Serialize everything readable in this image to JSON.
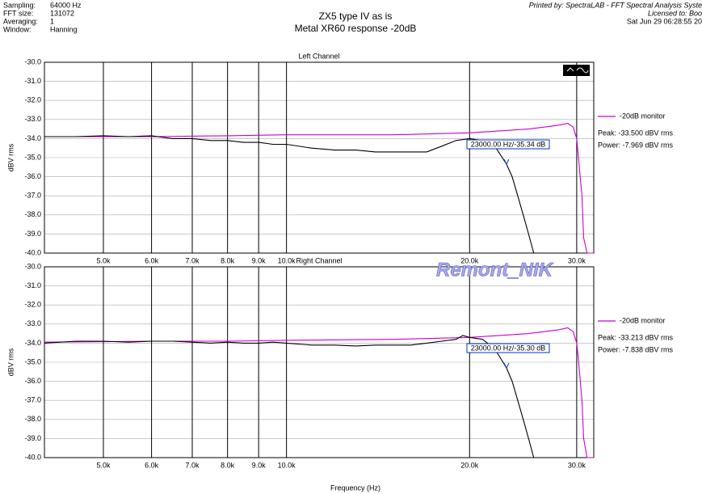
{
  "header": {
    "settings": [
      [
        "Sampling:",
        "64000 Hz"
      ],
      [
        "FFT size:",
        "131072"
      ],
      [
        "Averaging:",
        "1"
      ],
      [
        "Window:",
        "Hanning"
      ]
    ],
    "title_lines": [
      "ZX5 type IV as is",
      "Metal XR60 response -20dB"
    ],
    "printed_by": "Printed by: SpectraLAB - FFT Spectral Analysis Syste",
    "licensed": "Licensed to: Boo",
    "date": "Sat Jun 29 06:28:55 20",
    "watermark": "Remont_NIK",
    "xlabel": "Frequency (Hz)"
  },
  "chart_data": [
    {
      "type": "line",
      "title": "Left Channel",
      "ylabel": "dBV rms",
      "xscale": "log",
      "xlim": [
        4000,
        32000
      ],
      "ylim": [
        -40,
        -30
      ],
      "grid": true,
      "xticks": [
        {
          "value": 5000,
          "label": "5.0k"
        },
        {
          "value": 6000,
          "label": "6.0k"
        },
        {
          "value": 7000,
          "label": "7.0k"
        },
        {
          "value": 8000,
          "label": "8.0k"
        },
        {
          "value": 9000,
          "label": "9.0k"
        },
        {
          "value": 10000,
          "label": "10.0k"
        },
        {
          "value": 20000,
          "label": "20.0k"
        },
        {
          "value": 30000,
          "label": "30.0k"
        }
      ],
      "yticks": [
        {
          "value": -30,
          "label": "-30.0"
        },
        {
          "value": -31,
          "label": "-31.0"
        },
        {
          "value": -32,
          "label": "-32.0"
        },
        {
          "value": -33,
          "label": "-33.0"
        },
        {
          "value": -34,
          "label": "-34.0"
        },
        {
          "value": -35,
          "label": "-35.0"
        },
        {
          "value": -36,
          "label": "-36.0"
        },
        {
          "value": -37,
          "label": "-37.0"
        },
        {
          "value": -38,
          "label": "-38.0"
        },
        {
          "value": -39,
          "label": "-39.0"
        },
        {
          "value": -40,
          "label": "-40.0"
        }
      ],
      "series": [
        {
          "name": "-20dB monitor",
          "color": "#cc00cc",
          "x": [
            4000,
            6000,
            8000,
            10000,
            15000,
            20000,
            25000,
            28000,
            29000,
            29600,
            30000,
            30200,
            30600,
            30800,
            31200,
            32000
          ],
          "values": [
            -33.9,
            -33.9,
            -33.85,
            -33.8,
            -33.8,
            -33.7,
            -33.5,
            -33.3,
            -33.2,
            -33.4,
            -34.0,
            -35.0,
            -37.0,
            -39.2,
            -40.0,
            -40.0
          ]
        },
        {
          "name": null,
          "color": "#000000",
          "x": [
            4000,
            4500,
            5000,
            5500,
            6000,
            6500,
            7000,
            7500,
            8000,
            8500,
            9000,
            9500,
            10000,
            11000,
            12000,
            13000,
            14000,
            15000,
            16000,
            17000,
            18000,
            19000,
            20000,
            21000,
            22000,
            23000,
            23500,
            24000,
            24500,
            25000,
            25500,
            31000
          ],
          "values": [
            -33.9,
            -33.9,
            -33.85,
            -33.9,
            -33.85,
            -34.0,
            -34.0,
            -34.1,
            -34.1,
            -34.2,
            -34.2,
            -34.3,
            -34.3,
            -34.5,
            -34.6,
            -34.6,
            -34.7,
            -34.7,
            -34.7,
            -34.7,
            -34.4,
            -34.1,
            -34.0,
            -34.1,
            -34.4,
            -35.34,
            -36.0,
            -37.0,
            -38.0,
            -39.0,
            -40.0,
            -40.0
          ]
        }
      ],
      "cursor": {
        "x": 23000,
        "y": -35.34,
        "label": "23000.00 Hz/-35.34 dB"
      },
      "readouts": [
        "Peak: -33.500 dBV rms",
        "Power: -7.969 dBV rms"
      ]
    },
    {
      "type": "line",
      "title": "Right Channel",
      "ylabel": "dBV rms",
      "xscale": "log",
      "xlim": [
        4000,
        32000
      ],
      "ylim": [
        -40,
        -30
      ],
      "grid": true,
      "xticks": [
        {
          "value": 5000,
          "label": "5.0k"
        },
        {
          "value": 6000,
          "label": "6.0k"
        },
        {
          "value": 7000,
          "label": "7.0k"
        },
        {
          "value": 8000,
          "label": "8.0k"
        },
        {
          "value": 9000,
          "label": "9.0k"
        },
        {
          "value": 10000,
          "label": "10.0k"
        },
        {
          "value": 20000,
          "label": "20.0k"
        },
        {
          "value": 30000,
          "label": "30.0k"
        }
      ],
      "yticks": [
        {
          "value": -30,
          "label": "-30.0"
        },
        {
          "value": -31,
          "label": "-31.0"
        },
        {
          "value": -32,
          "label": "-32.0"
        },
        {
          "value": -33,
          "label": "-33.0"
        },
        {
          "value": -34,
          "label": "-34.0"
        },
        {
          "value": -35,
          "label": "-35.0"
        },
        {
          "value": -36,
          "label": "-36.0"
        },
        {
          "value": -37,
          "label": "-37.0"
        },
        {
          "value": -38,
          "label": "-38.0"
        },
        {
          "value": -39,
          "label": "-39.0"
        },
        {
          "value": -40,
          "label": "-40.0"
        }
      ],
      "series": [
        {
          "name": "-20dB monitor",
          "color": "#cc00cc",
          "x": [
            4000,
            6000,
            8000,
            10000,
            15000,
            20000,
            25000,
            28000,
            29000,
            29600,
            30000,
            30200,
            30600,
            30800,
            31200,
            32000
          ],
          "values": [
            -33.95,
            -33.9,
            -33.9,
            -33.85,
            -33.8,
            -33.7,
            -33.5,
            -33.3,
            -33.2,
            -33.4,
            -34.0,
            -34.9,
            -37.0,
            -39.0,
            -40.0,
            -40.0
          ]
        },
        {
          "name": null,
          "color": "#000000",
          "x": [
            4000,
            4500,
            5000,
            5500,
            6000,
            6500,
            7000,
            7500,
            8000,
            8500,
            9000,
            9500,
            10000,
            11000,
            12000,
            13000,
            14000,
            15000,
            16000,
            17000,
            18000,
            19000,
            19500,
            20000,
            21000,
            22000,
            23000,
            23500,
            24000,
            24500,
            25000,
            25500,
            31000
          ],
          "values": [
            -34.0,
            -33.9,
            -33.9,
            -33.95,
            -33.9,
            -33.9,
            -33.95,
            -34.0,
            -33.95,
            -34.0,
            -34.0,
            -33.95,
            -34.0,
            -34.1,
            -34.1,
            -34.15,
            -34.1,
            -34.1,
            -34.1,
            -34.0,
            -33.9,
            -33.8,
            -33.6,
            -33.7,
            -33.8,
            -34.3,
            -35.3,
            -36.0,
            -37.0,
            -38.0,
            -39.0,
            -40.0,
            -40.0
          ]
        }
      ],
      "cursor": {
        "x": 23000,
        "y": -35.3,
        "label": "23000.00 Hz/-35.30 dB"
      },
      "readouts": [
        "Peak: -33.213 dBV rms",
        "Power: -7.838 dBV rms"
      ]
    }
  ]
}
